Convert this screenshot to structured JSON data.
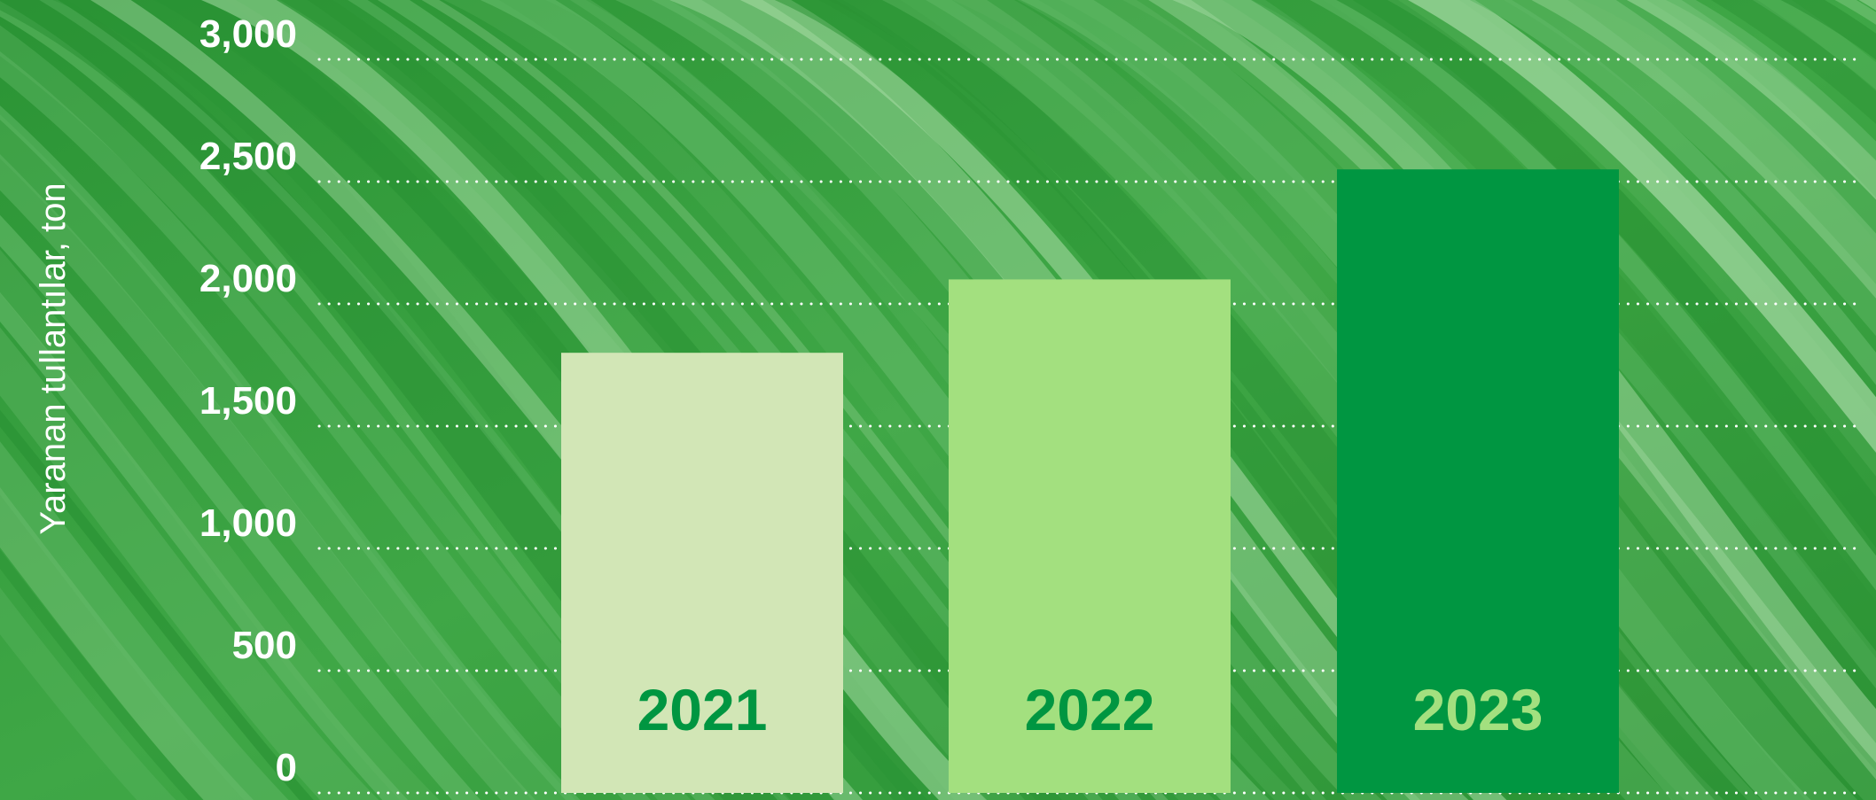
{
  "chart_data": {
    "type": "bar",
    "categories": [
      "2021",
      "2022",
      "2023"
    ],
    "values": [
      1800,
      2100,
      2550
    ],
    "title": "",
    "xlabel": "",
    "ylabel": "Yaranan tullantılar, ton",
    "ylim": [
      0,
      3000
    ],
    "yticks": [
      0,
      500,
      1000,
      1500,
      2000,
      2500,
      3000
    ],
    "ytick_labels": [
      "0",
      "500",
      "1,000",
      "1,500",
      "2,000",
      "2,500",
      "3,000"
    ],
    "grid": true,
    "legend": "none",
    "bar_colors": [
      "#d2e6b6",
      "#a3e07f",
      "#009641"
    ],
    "bar_label_colors": [
      "#009641",
      "#009641",
      "#a3e07f"
    ],
    "background": "green leaf texture",
    "background_colors": [
      "#2a9334",
      "#5fb765",
      "#a8dca6"
    ]
  }
}
